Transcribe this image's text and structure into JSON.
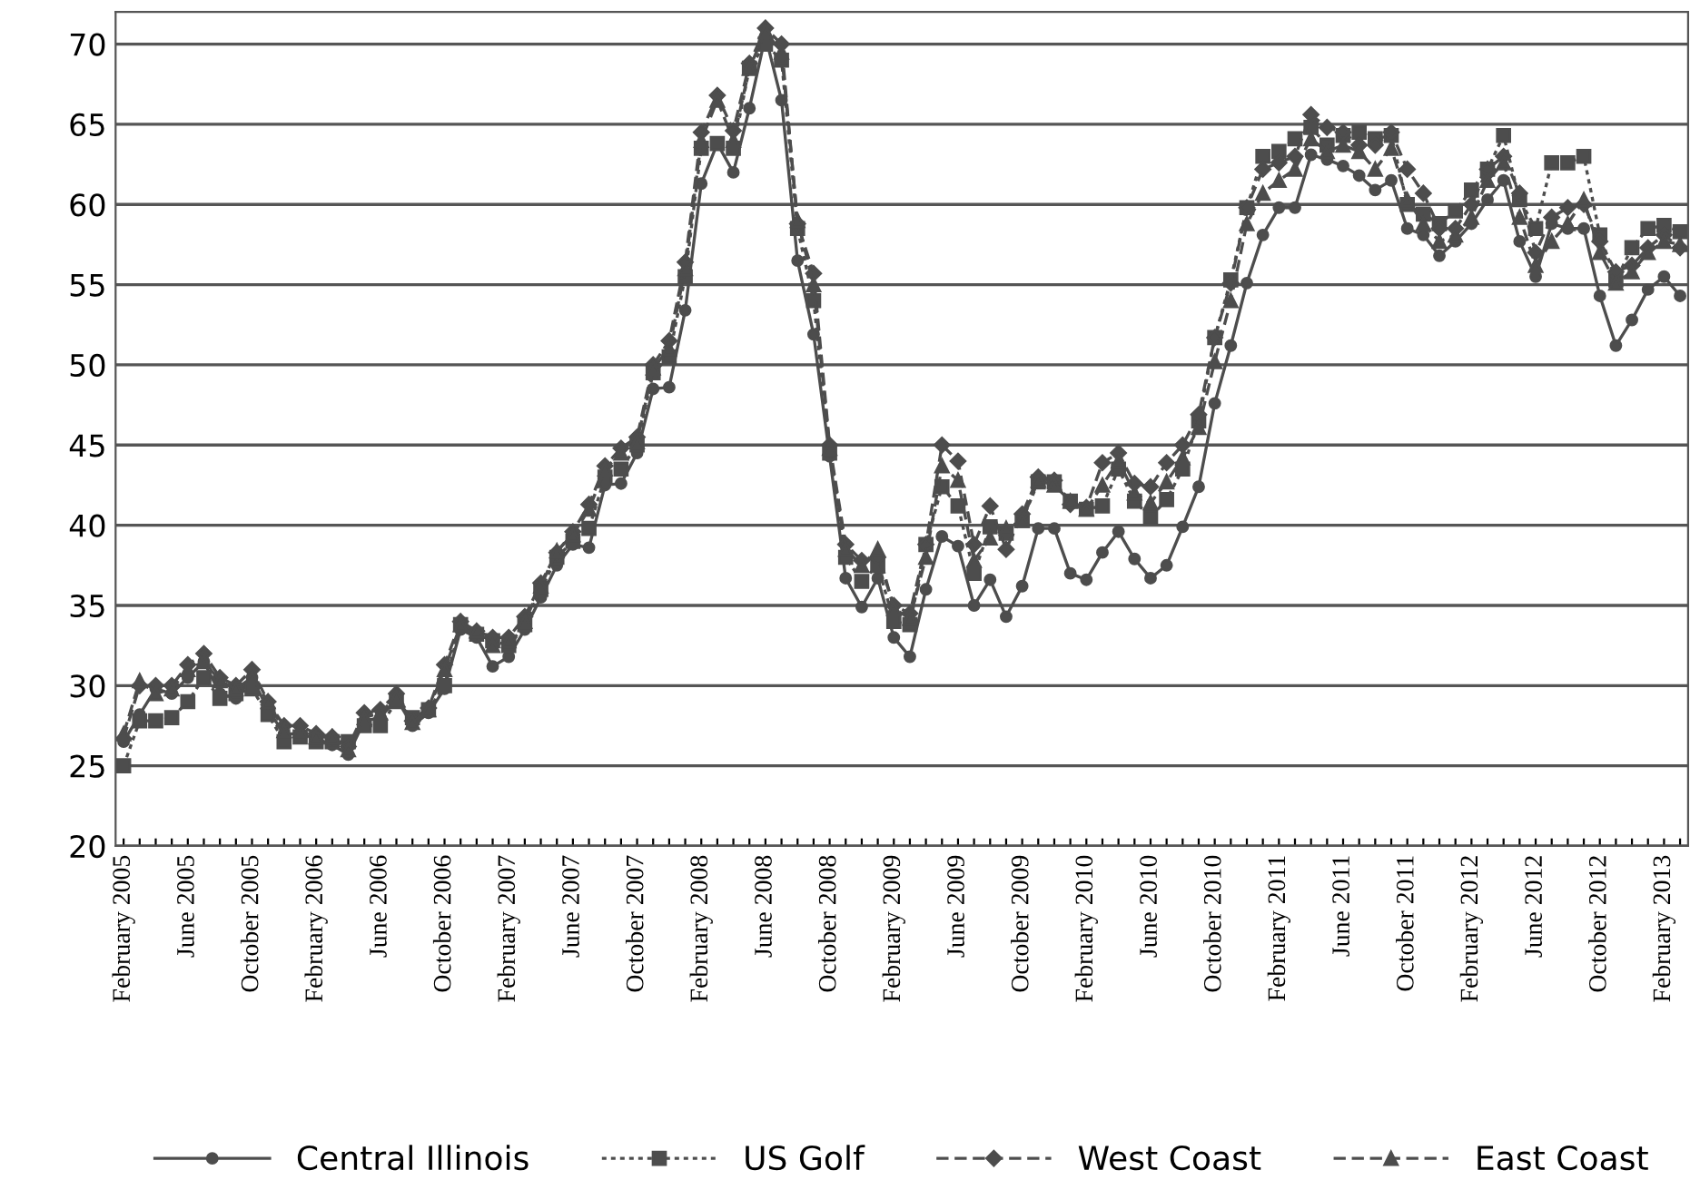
{
  "chart_data": {
    "type": "line",
    "categories": [
      "February 2005",
      null,
      null,
      null,
      "June 2005",
      null,
      null,
      null,
      "October 2005",
      null,
      null,
      null,
      "February 2006",
      null,
      null,
      null,
      "June 2006",
      null,
      null,
      null,
      "October 2006",
      null,
      null,
      null,
      "February 2007",
      null,
      null,
      null,
      "June 2007",
      null,
      null,
      null,
      "October 2007",
      null,
      null,
      null,
      "February 2008",
      null,
      null,
      null,
      "June 2008",
      null,
      null,
      null,
      "October 2008",
      null,
      null,
      null,
      "February 2009",
      null,
      null,
      null,
      "June 2009",
      null,
      null,
      null,
      "October 2009",
      null,
      null,
      null,
      "February 2010",
      null,
      null,
      null,
      "June 2010",
      null,
      null,
      null,
      "October 2010",
      null,
      null,
      null,
      "February 2011",
      null,
      null,
      null,
      "June 2011",
      null,
      null,
      null,
      "October 2011",
      null,
      null,
      null,
      "February 2012",
      null,
      null,
      null,
      "June 2012",
      null,
      null,
      null,
      "October 2012",
      null,
      null,
      null,
      "February 2013",
      null
    ],
    "series": [
      {
        "name": "Central Illinois",
        "color": "#4d4d4d",
        "marker": "circle",
        "line_style": "solid",
        "values": [
          26.5,
          28.2,
          29.8,
          29.5,
          30.5,
          31.5,
          29.5,
          29.2,
          30.5,
          28.5,
          27,
          27,
          26.7,
          26.3,
          25.7,
          27.8,
          28,
          29.2,
          27.5,
          28.3,
          29.8,
          33.5,
          33,
          31.2,
          31.8,
          33.5,
          35.5,
          37.5,
          38.8,
          38.6,
          42.5,
          42.6,
          44.5,
          48.5,
          48.6,
          53.4,
          61.3,
          63.8,
          62,
          66,
          70.5,
          66.5,
          56.5,
          51.9,
          44.3,
          36.7,
          34.9,
          36.7,
          33,
          31.8,
          36,
          39.3,
          38.7,
          35,
          36.6,
          34.3,
          36.2,
          39.8,
          39.8,
          37,
          36.6,
          38.3,
          39.6,
          37.9,
          36.7,
          37.5,
          39.9,
          42.4,
          47.6,
          51.2,
          55.1,
          58.1,
          59.8,
          59.8,
          63.1,
          62.8,
          62.4,
          61.8,
          60.9,
          61.5,
          58.5,
          58.1,
          56.8,
          57.7,
          58.8,
          60.3,
          61.5,
          57.7,
          55.5,
          58.8,
          58.5,
          58.5,
          54.3,
          51.2,
          52.8,
          54.7,
          55.5,
          54.3
        ]
      },
      {
        "name": "US Golf",
        "color": "#4d4d4d",
        "marker": "square",
        "line_style": "dotted",
        "values": [
          25,
          27.8,
          27.8,
          28,
          29,
          30.5,
          29.2,
          29.5,
          29.8,
          28.2,
          26.5,
          26.8,
          26.5,
          26.5,
          26.5,
          27.5,
          27.5,
          29,
          28,
          28.5,
          30,
          33.8,
          33.2,
          32.8,
          32.5,
          33.8,
          36,
          38,
          39,
          39.8,
          43,
          43.5,
          45,
          49.5,
          50.5,
          55.5,
          63.5,
          63.8,
          63.5,
          68.5,
          70,
          69,
          58.5,
          54,
          44.5,
          38,
          36.5,
          37.5,
          34,
          33.8,
          38.8,
          42.4,
          41.2,
          37,
          39.9,
          39.5,
          40.3,
          42.7,
          42.7,
          41.5,
          41,
          41.2,
          43.5,
          41.5,
          40.5,
          41.6,
          43.5,
          46.5,
          51.7,
          55.3,
          59.8,
          63,
          63.3,
          64.1,
          64.8,
          63.7,
          64.3,
          64.5,
          64.1,
          64.3,
          60,
          59.4,
          58.8,
          59.6,
          60.9,
          62.2,
          64.3,
          60.3,
          58.5,
          62.6,
          62.6,
          63,
          58.1,
          55.3,
          57.3,
          58.5,
          58.7,
          58.3
        ]
      },
      {
        "name": "West Coast",
        "color": "#4d4d4d",
        "marker": "diamond",
        "line_style": "dashed",
        "values": [
          26.7,
          30,
          30,
          30,
          31.3,
          32,
          30.5,
          30,
          31,
          29,
          27.5,
          27.5,
          27,
          26.8,
          26.2,
          28.3,
          28.5,
          29.5,
          27.8,
          28.6,
          31.3,
          34,
          33.4,
          33,
          33,
          34.3,
          36.4,
          38.3,
          39.6,
          41.3,
          43.7,
          44.8,
          45.5,
          50,
          51.5,
          56.4,
          64.5,
          66.8,
          64.6,
          68.8,
          71,
          70,
          58.8,
          55.7,
          45,
          38.8,
          37.8,
          38,
          35,
          34.5,
          38.8,
          45,
          44,
          38.8,
          41.2,
          38.5,
          40.7,
          43,
          42.8,
          41.3,
          41.1,
          43.9,
          44.5,
          42.6,
          42.4,
          43.9,
          45,
          46.9,
          51.7,
          55.1,
          59.8,
          62.2,
          62.6,
          63,
          65.6,
          64.8,
          64.5,
          63.7,
          63.7,
          64.5,
          62.2,
          60.7,
          58.5,
          58.5,
          60,
          62.2,
          63,
          60.7,
          57,
          59.2,
          59.8,
          60,
          57.7,
          55.8,
          56.2,
          57.3,
          58.1,
          57.3
        ]
      },
      {
        "name": "East Coast",
        "color": "#4d4d4d",
        "marker": "triangle",
        "line_style": "dashed",
        "values": [
          27,
          30.3,
          29.5,
          29.8,
          31,
          31.5,
          30.3,
          29.8,
          30.5,
          29,
          27.2,
          27.2,
          26.8,
          26.8,
          26,
          28,
          28.3,
          29.3,
          27.7,
          28.5,
          31,
          33.8,
          33.4,
          32.5,
          32.8,
          34,
          36.2,
          38.4,
          39.4,
          41,
          43.5,
          44.5,
          45.2,
          49.8,
          51,
          56,
          64,
          66.5,
          64,
          68.5,
          70.8,
          69.5,
          59,
          55,
          44.8,
          38.5,
          37.5,
          38.5,
          34.8,
          34.2,
          38,
          43.7,
          42.8,
          37.8,
          39.2,
          39.8,
          40.3,
          42.8,
          42.5,
          41.5,
          41,
          42.5,
          44,
          42,
          41.4,
          42.7,
          44.2,
          46.1,
          50.2,
          54,
          58.8,
          60.7,
          61.5,
          62.2,
          64.1,
          63.3,
          63.7,
          63.3,
          62.2,
          63.5,
          60.3,
          58.8,
          57.7,
          58.1,
          59.2,
          61.5,
          62.6,
          59.2,
          56.2,
          57.7,
          58.8,
          60.3,
          57,
          55.1,
          55.8,
          57,
          57.7,
          57.5
        ]
      }
    ],
    "ylim": [
      20,
      72
    ],
    "yticks": [
      20,
      25,
      30,
      35,
      40,
      45,
      50,
      55,
      60,
      65,
      70
    ],
    "grid": "y",
    "legend": "bottom"
  }
}
